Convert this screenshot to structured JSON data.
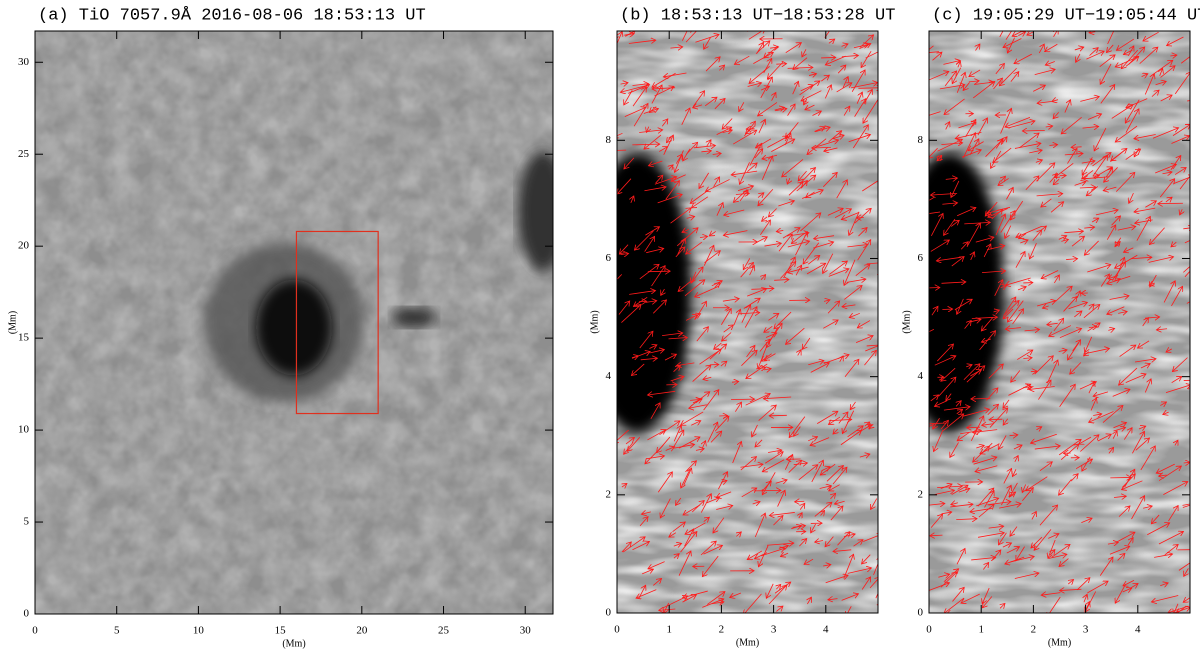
{
  "chart_data": [
    {
      "type": "image",
      "title": "(a) TiO 7057.9Å   2016-08-06 18:53:13 UT",
      "xlabel": "(Mm)",
      "ylabel": "(Mm)",
      "xlim": [
        0,
        31.7
      ],
      "ylim": [
        0,
        31.7
      ],
      "xticks": [
        0,
        5,
        10,
        15,
        20,
        25,
        30
      ],
      "yticks": [
        0,
        5,
        10,
        15,
        20,
        25,
        30
      ],
      "region": {
        "x": [
          16,
          21
        ],
        "y": [
          10.9,
          20.8
        ],
        "color": "#e0301e"
      }
    },
    {
      "type": "image",
      "title": "(b) 18:53:13 UT−18:53:28 UT",
      "xlabel": "(Mm)",
      "ylabel": "(Mm)",
      "xlim": [
        0,
        5
      ],
      "ylim": [
        0,
        9.85
      ],
      "xticks": [
        0,
        1,
        2,
        3,
        4
      ],
      "yticks": [
        0,
        2,
        4,
        6,
        8
      ]
    },
    {
      "type": "image",
      "title": "(c) 19:05:29 UT−19:05:44 UT",
      "xlabel": "(Mm)",
      "ylabel": "(Mm)",
      "xlim": [
        0,
        5
      ],
      "ylim": [
        0,
        9.85
      ],
      "xticks": [
        0,
        1,
        2,
        3,
        4
      ],
      "yticks": [
        0,
        2,
        4,
        6,
        8
      ]
    }
  ]
}
